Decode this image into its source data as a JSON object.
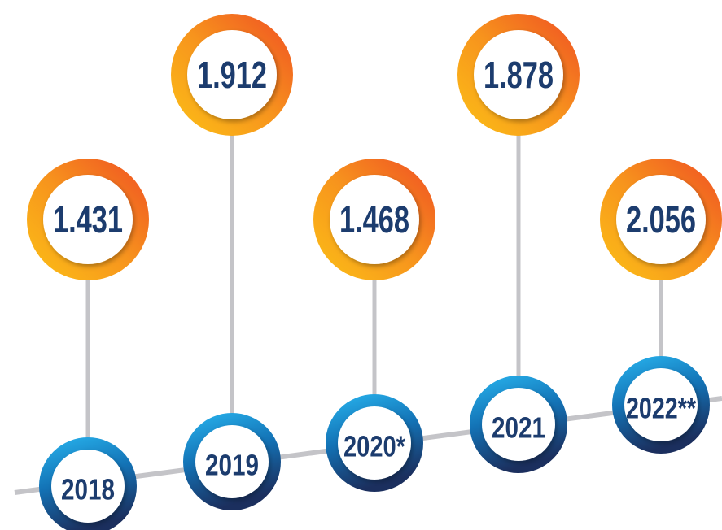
{
  "items": [
    {
      "value": "1.431",
      "year": "2018"
    },
    {
      "value": "1.912",
      "year": "2019"
    },
    {
      "value": "1.468",
      "year": "2020*"
    },
    {
      "value": "1.878",
      "year": "2021"
    },
    {
      "value": "2.056",
      "year": "2022**"
    }
  ]
}
